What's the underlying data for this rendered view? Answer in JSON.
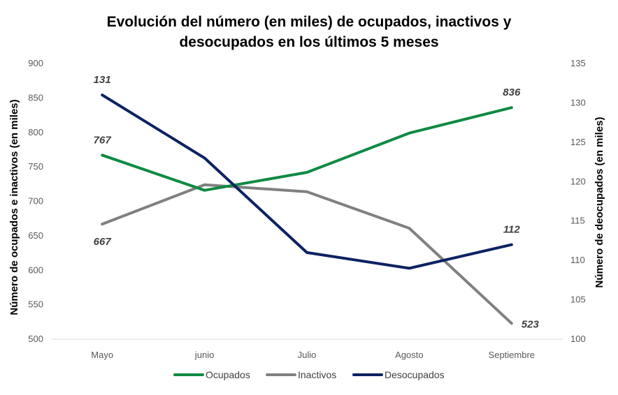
{
  "chart_data": {
    "type": "line",
    "title_lines": [
      "Evolución del número (en miles) de ocupados, inactivos y",
      "desocupados en los últimos 5 meses"
    ],
    "categories": [
      "Mayo",
      "junio",
      "Julio",
      "Agosto",
      "Septiembre"
    ],
    "ylabel": "Número de ocupados e inactivos (en miles)",
    "y2label": "Número de deocupados (en miles)",
    "ylim": [
      500,
      900
    ],
    "yticks": [
      500,
      550,
      600,
      650,
      700,
      750,
      800,
      850,
      900
    ],
    "y2lim": [
      100,
      135
    ],
    "y2ticks": [
      100,
      105,
      110,
      115,
      120,
      125,
      130,
      135
    ],
    "grid": false,
    "legend_position": "bottom",
    "series": [
      {
        "name": "Ocupados",
        "axis": "left",
        "color": "#0f8a43",
        "values": [
          767,
          716,
          742,
          799,
          836
        ]
      },
      {
        "name": "Inactivos",
        "axis": "left",
        "color": "#808080",
        "values": [
          667,
          724,
          714,
          661,
          523
        ]
      },
      {
        "name": "Desocupados",
        "axis": "right",
        "color": "#0d2262",
        "values": [
          131,
          123,
          111,
          109,
          112
        ]
      }
    ],
    "annotations": [
      {
        "series": "Desocupados",
        "category": "Mayo",
        "text": "131",
        "position": "above"
      },
      {
        "series": "Ocupados",
        "category": "Mayo",
        "text": "767",
        "position": "above"
      },
      {
        "series": "Inactivos",
        "category": "Mayo",
        "text": "667",
        "position": "below"
      },
      {
        "series": "Ocupados",
        "category": "Septiembre",
        "text": "836",
        "position": "above"
      },
      {
        "series": "Desocupados",
        "category": "Septiembre",
        "text": "112",
        "position": "above"
      },
      {
        "series": "Inactivos",
        "category": "Septiembre",
        "text": "523",
        "position": "right"
      }
    ]
  }
}
